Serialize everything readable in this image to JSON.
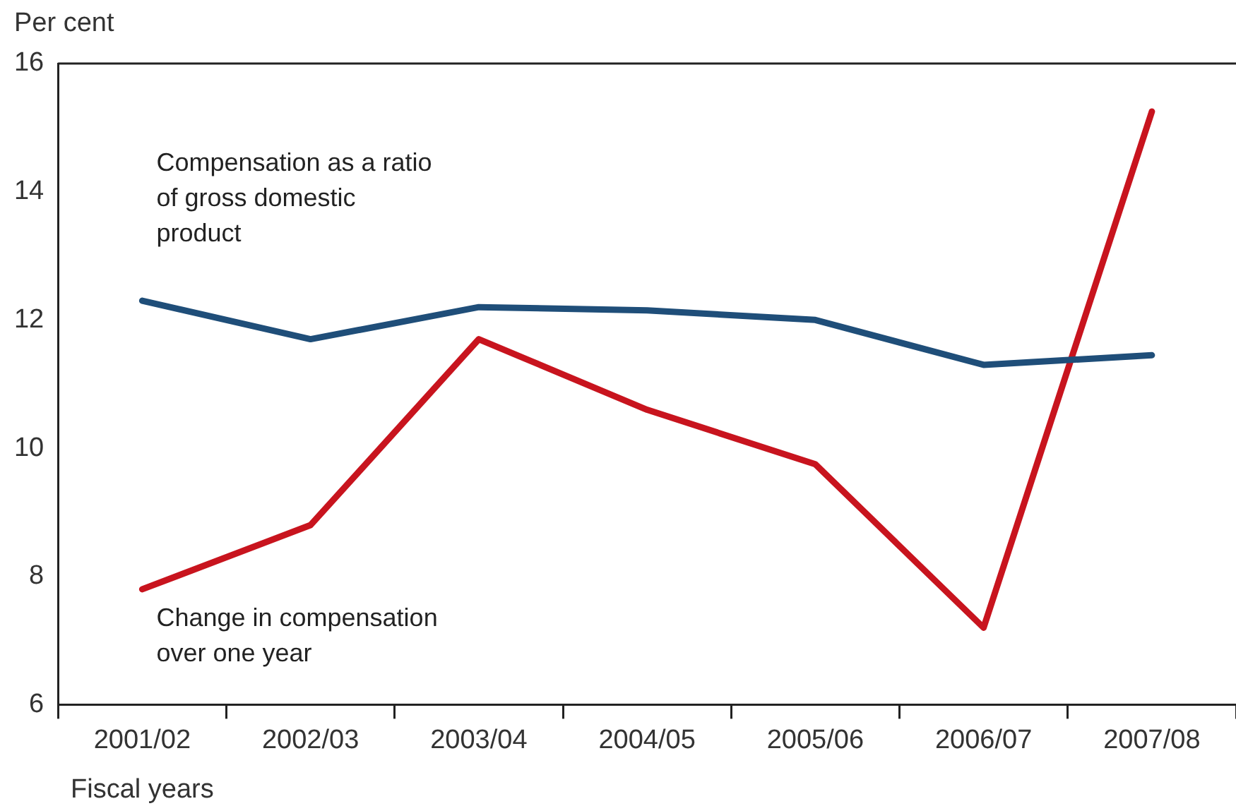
{
  "chart_data": {
    "type": "line",
    "ylabel": "Per cent",
    "xlabel": "Fiscal years",
    "categories": [
      "2001/02",
      "2002/03",
      "2003/04",
      "2004/05",
      "2005/06",
      "2006/07",
      "2007/08"
    ],
    "series": [
      {
        "name": "Compensation as a ratio of gross domestic product",
        "color": "#1f4e79",
        "values": [
          12.3,
          11.7,
          12.2,
          12.15,
          12.0,
          11.3,
          11.45
        ]
      },
      {
        "name": "Change in compensation over one year",
        "color": "#c8141e",
        "values": [
          7.8,
          8.8,
          11.7,
          10.6,
          9.75,
          7.2,
          15.25
        ]
      }
    ],
    "ylim": [
      6,
      16
    ],
    "yticks": [
      6,
      8,
      10,
      12,
      14,
      16
    ],
    "grid": false,
    "legend": false,
    "marker": "none",
    "line_style": "solid"
  }
}
